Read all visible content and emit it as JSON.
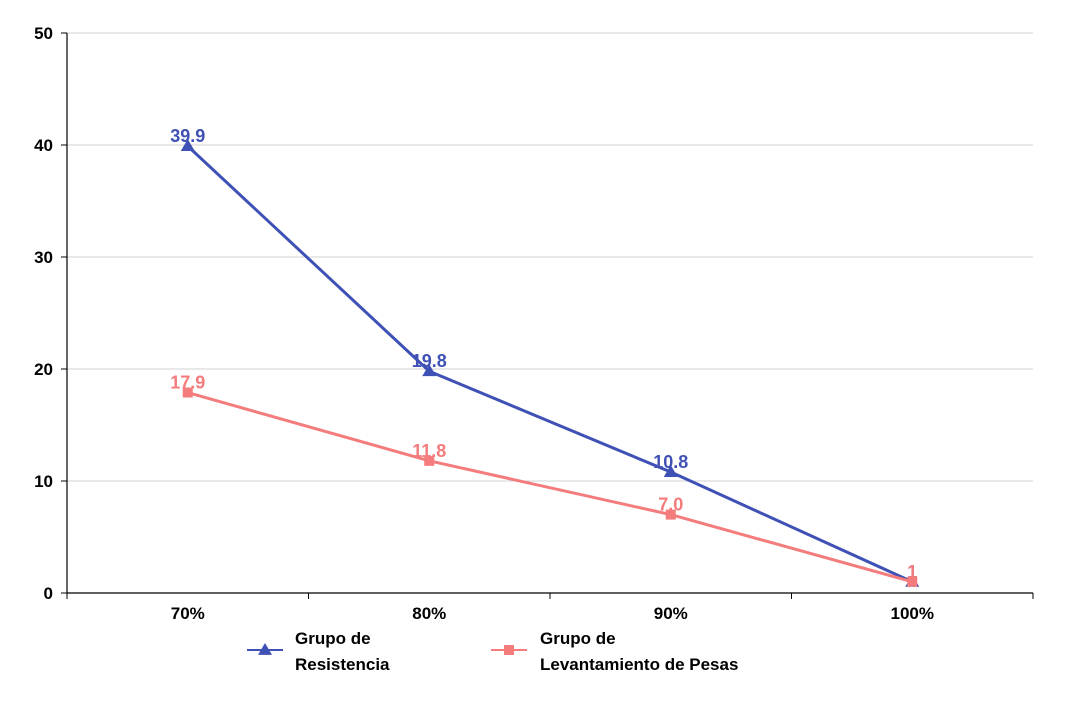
{
  "chart_data": {
    "type": "line",
    "categories": [
      "70%",
      "80%",
      "90%",
      "100%"
    ],
    "ylim": [
      0,
      50
    ],
    "yticks": [
      0,
      10,
      20,
      30,
      40,
      50
    ],
    "grid": true,
    "legend_position": "bottom",
    "series": [
      {
        "name": "Grupo de Resistencia",
        "name_lines": [
          "Grupo de",
          "Resistencia"
        ],
        "values": [
          39.9,
          19.8,
          10.8,
          1
        ],
        "labels": [
          "39.9",
          "19.8",
          "10.8",
          "1"
        ],
        "color": "#3F51B5",
        "marker": "triangle"
      },
      {
        "name": "Grupo de Levantamiento de Pesas",
        "name_lines": [
          "Grupo de",
          "Levantamiento de Pesas"
        ],
        "values": [
          17.9,
          11.8,
          7.0,
          1
        ],
        "labels": [
          "17.9",
          "11.8",
          "7.0",
          "1"
        ],
        "color": "#F47C7C",
        "marker": "square"
      }
    ]
  }
}
